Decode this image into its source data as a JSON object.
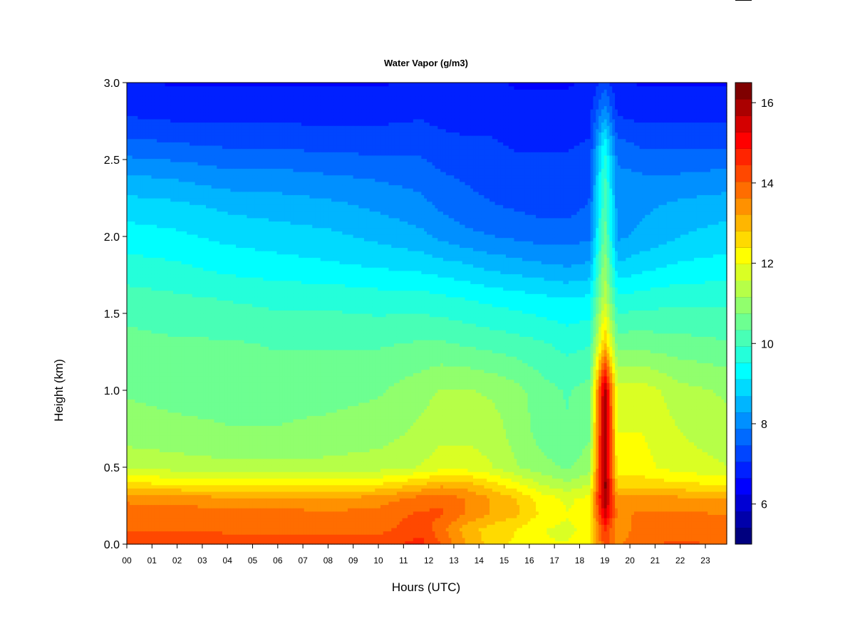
{
  "chart_data": {
    "type": "heatmap",
    "title": "Water Vapor (g/m3)",
    "xlabel": "Hours (UTC)",
    "ylabel": "Height (km)",
    "xlim": [
      0,
      23.85
    ],
    "ylim": [
      0.0,
      3.0
    ],
    "x_ticks": [
      "00",
      "01",
      "02",
      "03",
      "04",
      "05",
      "06",
      "07",
      "08",
      "09",
      "10",
      "11",
      "12",
      "13",
      "14",
      "15",
      "16",
      "17",
      "18",
      "19",
      "20",
      "21",
      "22",
      "23"
    ],
    "y_ticks": [
      "0.0",
      "0.5",
      "1.0",
      "1.5",
      "2.0",
      "2.5",
      "3.0"
    ],
    "colorbar": {
      "range": [
        5.0,
        16.5
      ],
      "ticks": [
        "6",
        "8",
        "10",
        "12",
        "14",
        "16"
      ],
      "levels": [
        "#00007F",
        "#0000AA",
        "#0000D4",
        "#0000FF",
        "#0020FF",
        "#0045FF",
        "#006AFF",
        "#0090FF",
        "#00B5FF",
        "#00DAFF",
        "#00FFFF",
        "#24FFDA",
        "#48FFB6",
        "#6DFF91",
        "#91FF6D",
        "#B6FF48",
        "#DAFF24",
        "#FFFF00",
        "#FFDA00",
        "#FFB600",
        "#FF9100",
        "#FF6D00",
        "#FF4800",
        "#FF2400",
        "#FF0000",
        "#D40000",
        "#AA0000",
        "#7F0000"
      ]
    },
    "profile_height_km": [
      0.0,
      0.1,
      0.2,
      0.3,
      0.4,
      0.5,
      0.7,
      1.0,
      1.3,
      1.6,
      1.8,
      2.0,
      2.2,
      2.4,
      2.6,
      2.8,
      3.0
    ],
    "profiles": [
      {
        "hour": 0,
        "values": [
          14.4,
          14.0,
          13.9,
          13.5,
          12.4,
          11.5,
          11.0,
          10.7,
          10.5,
          10.1,
          9.7,
          9.3,
          8.9,
          8.3,
          7.6,
          7.0,
          6.7
        ]
      },
      {
        "hour": 2,
        "values": [
          14.5,
          14.0,
          13.9,
          13.4,
          12.3,
          11.4,
          10.9,
          10.6,
          10.4,
          10.0,
          9.6,
          9.2,
          8.8,
          8.2,
          7.5,
          6.9,
          6.6
        ]
      },
      {
        "hour": 4,
        "values": [
          14.4,
          13.9,
          13.8,
          13.3,
          12.2,
          11.3,
          10.8,
          10.6,
          10.4,
          9.9,
          9.4,
          9.0,
          8.6,
          8.0,
          7.4,
          6.9,
          6.6
        ]
      },
      {
        "hour": 6,
        "values": [
          14.3,
          13.9,
          13.8,
          13.3,
          12.2,
          11.3,
          10.8,
          10.6,
          10.3,
          9.8,
          9.3,
          8.9,
          8.5,
          8.0,
          7.4,
          6.9,
          6.6
        ]
      },
      {
        "hour": 8,
        "values": [
          14.3,
          13.9,
          13.7,
          13.2,
          12.2,
          11.3,
          10.9,
          10.6,
          10.3,
          9.8,
          9.2,
          8.8,
          8.4,
          7.9,
          7.3,
          6.9,
          6.6
        ]
      },
      {
        "hour": 10,
        "values": [
          14.3,
          13.9,
          13.8,
          13.4,
          12.3,
          11.4,
          11.0,
          10.7,
          10.3,
          9.7,
          9.1,
          8.6,
          8.2,
          7.8,
          7.3,
          6.9,
          6.6
        ]
      },
      {
        "hour": 11.7,
        "values": [
          14.6,
          14.3,
          14.1,
          13.8,
          12.7,
          11.6,
          11.3,
          11.0,
          10.4,
          9.7,
          9.0,
          8.4,
          8.0,
          7.7,
          7.3,
          7.0,
          6.7
        ]
      },
      {
        "hour": 12.5,
        "values": [
          14.0,
          13.8,
          14.1,
          13.9,
          13.0,
          11.8,
          11.5,
          11.2,
          10.4,
          9.6,
          8.9,
          8.2,
          7.8,
          7.5,
          7.2,
          6.9,
          6.7
        ]
      },
      {
        "hour": 13.5,
        "values": [
          13.2,
          13.0,
          13.6,
          13.6,
          12.9,
          11.8,
          11.5,
          11.2,
          10.3,
          9.5,
          8.8,
          8.0,
          7.6,
          7.4,
          7.1,
          6.9,
          6.7
        ]
      },
      {
        "hour": 14.5,
        "values": [
          12.6,
          12.6,
          13.2,
          13.2,
          12.5,
          11.6,
          11.4,
          11.1,
          10.2,
          9.4,
          8.6,
          7.9,
          7.5,
          7.3,
          7.1,
          6.9,
          6.7
        ]
      },
      {
        "hour": 15.5,
        "values": [
          12.3,
          12.4,
          12.9,
          12.8,
          12.0,
          11.2,
          11.0,
          10.9,
          10.1,
          9.3,
          8.5,
          7.8,
          7.4,
          7.2,
          7.0,
          6.8,
          6.6
        ]
      },
      {
        "hour": 16.5,
        "values": [
          12.0,
          12.0,
          12.3,
          12.2,
          11.5,
          10.9,
          10.6,
          10.5,
          10.0,
          9.2,
          8.4,
          7.7,
          7.3,
          7.2,
          7.0,
          6.8,
          6.6
        ]
      },
      {
        "hour": 17.5,
        "values": [
          12.0,
          11.9,
          12.0,
          11.9,
          11.2,
          10.7,
          10.4,
          10.3,
          9.8,
          9.1,
          8.3,
          7.7,
          7.3,
          7.2,
          7.0,
          6.8,
          6.6
        ]
      },
      {
        "hour": 18.4,
        "values": [
          12.3,
          12.1,
          12.2,
          12.1,
          11.5,
          11.0,
          10.7,
          10.5,
          9.9,
          9.2,
          8.4,
          7.8,
          7.5,
          7.4,
          7.1,
          6.9,
          6.7
        ]
      },
      {
        "hour": 19.0,
        "values": [
          14.2,
          14.6,
          15.6,
          16.2,
          16.3,
          16.2,
          16.2,
          16.0,
          13.0,
          11.5,
          11.1,
          10.6,
          10.3,
          10.0,
          9.4,
          8.2,
          7.3
        ]
      },
      {
        "hour": 19.5,
        "values": [
          13.5,
          13.4,
          13.5,
          13.3,
          12.6,
          12.1,
          12.0,
          11.8,
          10.6,
          9.6,
          8.8,
          8.2,
          8.1,
          8.0,
          7.6,
          7.0,
          6.7
        ]
      },
      {
        "hour": 20.5,
        "values": [
          14.0,
          13.8,
          13.7,
          13.4,
          12.6,
          12.1,
          12.0,
          11.8,
          10.6,
          9.7,
          9.0,
          8.4,
          8.2,
          7.9,
          7.4,
          6.9,
          6.6
        ]
      },
      {
        "hour": 22,
        "values": [
          14.1,
          13.9,
          13.7,
          13.3,
          12.4,
          11.8,
          11.6,
          11.3,
          10.5,
          9.8,
          9.2,
          8.7,
          8.4,
          7.9,
          7.4,
          6.9,
          6.6
        ]
      },
      {
        "hour": 23.85,
        "values": [
          14.0,
          13.8,
          13.6,
          13.2,
          12.3,
          11.6,
          11.3,
          11.1,
          10.4,
          9.8,
          9.3,
          8.9,
          8.5,
          8.0,
          7.4,
          6.9,
          6.6
        ]
      }
    ]
  }
}
